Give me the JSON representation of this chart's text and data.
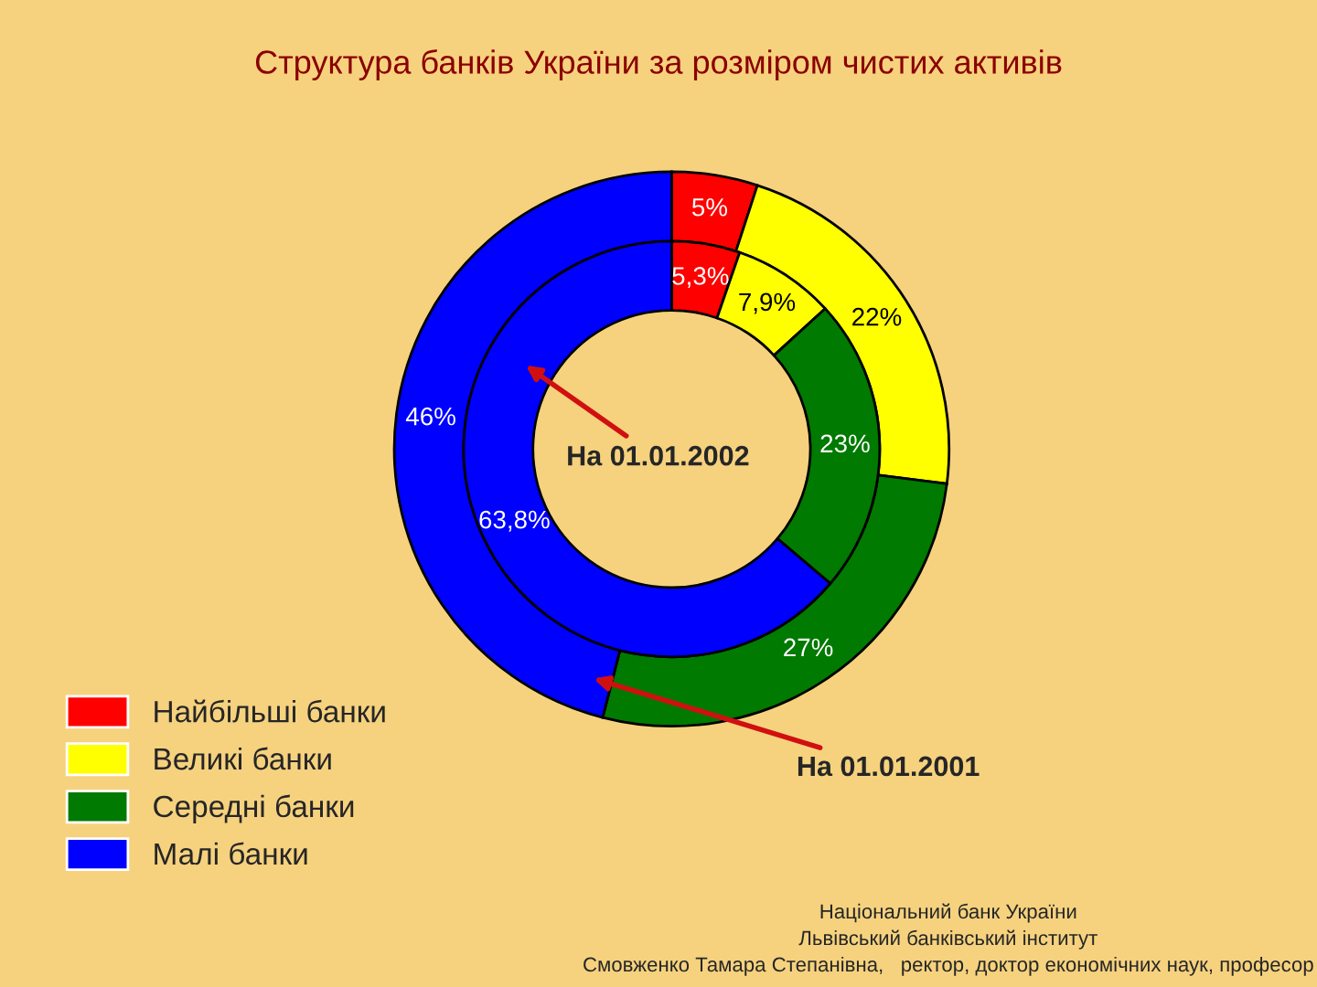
{
  "chart_data": {
    "type": "donut",
    "title": "Структура банків України за розміром чистих активів",
    "categories": [
      "Найбільші банки",
      "Великі банки",
      "Середні банки",
      "Малі банки"
    ],
    "colors": [
      "#ff0000",
      "#ffff00",
      "#007a00",
      "#0000ff"
    ],
    "series": [
      {
        "name": "На 01.01.2001",
        "values": [
          5,
          22,
          27,
          46
        ],
        "value_labels": [
          "5%",
          "22%",
          "27%",
          "46%"
        ]
      },
      {
        "name": "На 01.01.2002",
        "values": [
          5.3,
          7.9,
          23,
          63.8
        ],
        "value_labels": [
          "5,3%",
          "7,9%",
          "23%",
          "63,8%"
        ]
      }
    ],
    "legend": "bottom left",
    "annotations": [
      "Національний банк України",
      "Львівський банківський інститут",
      "Смовженко Тамара Степанівна,   ректор, доктор економічних наук, професор"
    ]
  }
}
